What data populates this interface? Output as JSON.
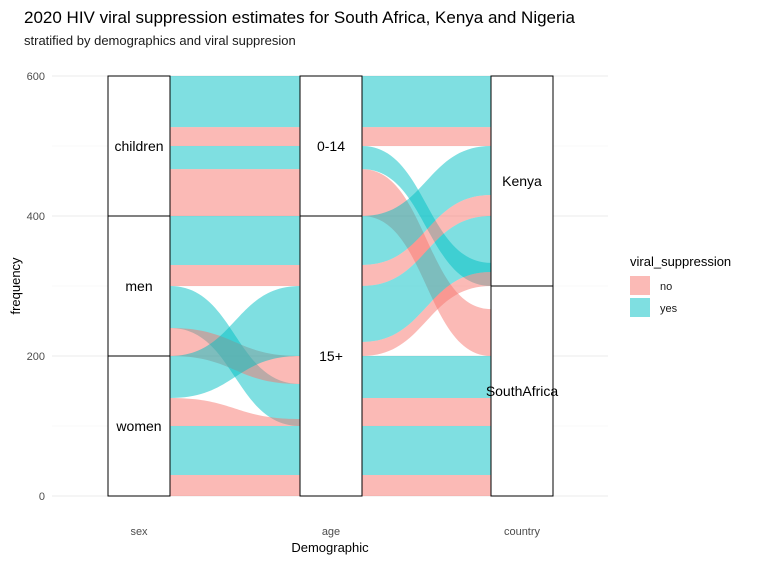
{
  "chart_data": {
    "type": "alluvial",
    "title": "2020 HIV viral suppression estimates for South Africa, Kenya and Nigeria",
    "subtitle": "stratified by demographics and viral suppresion",
    "xlabel": "Demographic",
    "ylabel": "frequency",
    "ylim": [
      0,
      600
    ],
    "yticks": [
      0,
      200,
      400,
      600
    ],
    "axes": [
      "sex",
      "age",
      "country"
    ],
    "strata": {
      "sex": [
        {
          "label": "children",
          "from": 400,
          "to": 600
        },
        {
          "label": "men",
          "from": 200,
          "to": 400
        },
        {
          "label": "women",
          "from": 0,
          "to": 200
        }
      ],
      "age": [
        {
          "label": "0-14",
          "from": 400,
          "to": 600
        },
        {
          "label": "15+",
          "from": 0,
          "to": 400
        }
      ],
      "country": [
        {
          "label": "Kenya",
          "from": 300,
          "to": 600
        },
        {
          "label": "SouthAfrica",
          "from": 0,
          "to": 300
        }
      ]
    },
    "flows_sex_age": [
      {
        "fill": "yes",
        "left": [
          527,
          600
        ],
        "right": [
          527,
          600
        ]
      },
      {
        "fill": "no",
        "left": [
          500,
          527
        ],
        "right": [
          500,
          527
        ]
      },
      {
        "fill": "yes",
        "left": [
          467,
          500
        ],
        "right": [
          467,
          500
        ]
      },
      {
        "fill": "no",
        "left": [
          400,
          467
        ],
        "right": [
          400,
          467
        ]
      },
      {
        "fill": "yes",
        "left": [
          330,
          400
        ],
        "right": [
          330,
          400
        ]
      },
      {
        "fill": "no",
        "left": [
          300,
          330
        ],
        "right": [
          300,
          330
        ]
      },
      {
        "fill": "yes",
        "left": [
          240,
          300
        ],
        "right": [
          100,
          160
        ]
      },
      {
        "fill": "no",
        "left": [
          200,
          240
        ],
        "right": [
          160,
          200
        ]
      },
      {
        "fill": "yes",
        "left": [
          140,
          200
        ],
        "right": [
          200,
          300
        ]
      },
      {
        "fill": "no",
        "left": [
          100,
          140
        ],
        "right": [
          100,
          110
        ]
      },
      {
        "fill": "yes",
        "left": [
          30,
          100
        ],
        "right": [
          30,
          100
        ]
      },
      {
        "fill": "no",
        "left": [
          0,
          30
        ],
        "right": [
          0,
          30
        ]
      }
    ],
    "flows_age_country": [
      {
        "fill": "yes",
        "left": [
          527,
          600
        ],
        "right": [
          527,
          600
        ]
      },
      {
        "fill": "no",
        "left": [
          500,
          527
        ],
        "right": [
          500,
          527
        ]
      },
      {
        "fill": "yes",
        "left": [
          467,
          500
        ],
        "right": [
          300,
          333
        ]
      },
      {
        "fill": "no",
        "left": [
          400,
          467
        ],
        "right": [
          200,
          267
        ]
      },
      {
        "fill": "yes",
        "left": [
          330,
          400
        ],
        "right": [
          430,
          500
        ]
      },
      {
        "fill": "no",
        "left": [
          300,
          330
        ],
        "right": [
          400,
          430
        ]
      },
      {
        "fill": "yes",
        "left": [
          220,
          300
        ],
        "right": [
          320,
          400
        ]
      },
      {
        "fill": "no",
        "left": [
          200,
          220
        ],
        "right": [
          300,
          320
        ]
      },
      {
        "fill": "yes",
        "left": [
          140,
          200
        ],
        "right": [
          140,
          200
        ]
      },
      {
        "fill": "no",
        "left": [
          100,
          140
        ],
        "right": [
          100,
          140
        ]
      },
      {
        "fill": "yes",
        "left": [
          30,
          100
        ],
        "right": [
          30,
          100
        ]
      },
      {
        "fill": "no",
        "left": [
          0,
          30
        ],
        "right": [
          0,
          30
        ]
      }
    ],
    "legend": {
      "title": "viral_suppression",
      "placement": "right",
      "items": [
        {
          "label": "no",
          "color": "#F8766D"
        },
        {
          "label": "yes",
          "color": "#00BFC4"
        }
      ]
    },
    "flow_opacity": 0.5,
    "grid": true
  }
}
